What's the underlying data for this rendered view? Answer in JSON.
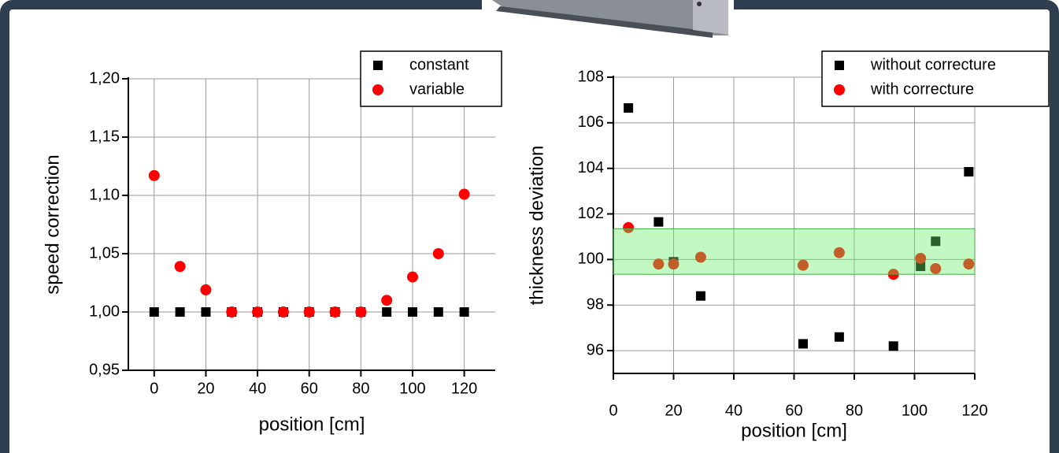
{
  "chart_data": [
    {
      "type": "scatter",
      "xlabel": "position [cm]",
      "ylabel": "speed correction",
      "xlim": [
        -10,
        132
      ],
      "ylim": [
        0.95,
        1.2
      ],
      "xticks": [
        0,
        20,
        40,
        60,
        80,
        100,
        120
      ],
      "yticks": [
        {
          "value": 0.95,
          "label": "0,95"
        },
        {
          "value": 1.0,
          "label": "1,00"
        },
        {
          "value": 1.05,
          "label": "1,05"
        },
        {
          "value": 1.1,
          "label": "1,10"
        },
        {
          "value": 1.15,
          "label": "1,15"
        },
        {
          "value": 1.2,
          "label": "1,20"
        }
      ],
      "grid": true,
      "series": [
        {
          "name": "constant",
          "color": "#000000",
          "marker": "square",
          "x": [
            0,
            10,
            20,
            30,
            40,
            50,
            60,
            70,
            80,
            90,
            100,
            110,
            120
          ],
          "values": [
            1.0,
            1.0,
            1.0,
            1.0,
            1.0,
            1.0,
            1.0,
            1.0,
            1.0,
            1.0,
            1.0,
            1.0,
            1.0
          ]
        },
        {
          "name": "variable",
          "color": "#ff0000",
          "marker": "circle",
          "x": [
            0,
            10,
            20,
            30,
            40,
            50,
            60,
            70,
            80,
            90,
            100,
            110,
            120
          ],
          "values": [
            1.117,
            1.039,
            1.019,
            1.0,
            1.0,
            1.0,
            1.0,
            1.0,
            1.0,
            1.01,
            1.03,
            1.05,
            1.101
          ]
        }
      ]
    },
    {
      "type": "scatter",
      "xlabel": "position [cm]",
      "ylabel": "thickness deviation",
      "xlim": [
        0,
        120
      ],
      "ylim": [
        95,
        108
      ],
      "xticks": [
        0,
        20,
        40,
        60,
        80,
        100,
        120
      ],
      "yticks": [
        96,
        98,
        100,
        102,
        104,
        106,
        108
      ],
      "grid": true,
      "band": {
        "values": [
          99.35,
          101.35
        ],
        "color": "#66ee66"
      },
      "series": [
        {
          "name": "without correcture",
          "color": "#000000",
          "marker": "square",
          "x": [
            5,
            15,
            20,
            29,
            63,
            75,
            93,
            102,
            107,
            118
          ],
          "values": [
            106.65,
            101.65,
            99.9,
            98.4,
            96.3,
            96.6,
            96.2,
            99.7,
            100.8,
            103.85
          ]
        },
        {
          "name": "with correcture",
          "color": "#ff0000",
          "marker": "circle",
          "x": [
            5,
            15,
            20,
            29,
            63,
            75,
            93,
            102,
            107,
            118
          ],
          "values": [
            101.4,
            99.8,
            99.8,
            100.1,
            99.75,
            100.3,
            99.35,
            100.05,
            99.6,
            99.8
          ]
        }
      ]
    }
  ]
}
